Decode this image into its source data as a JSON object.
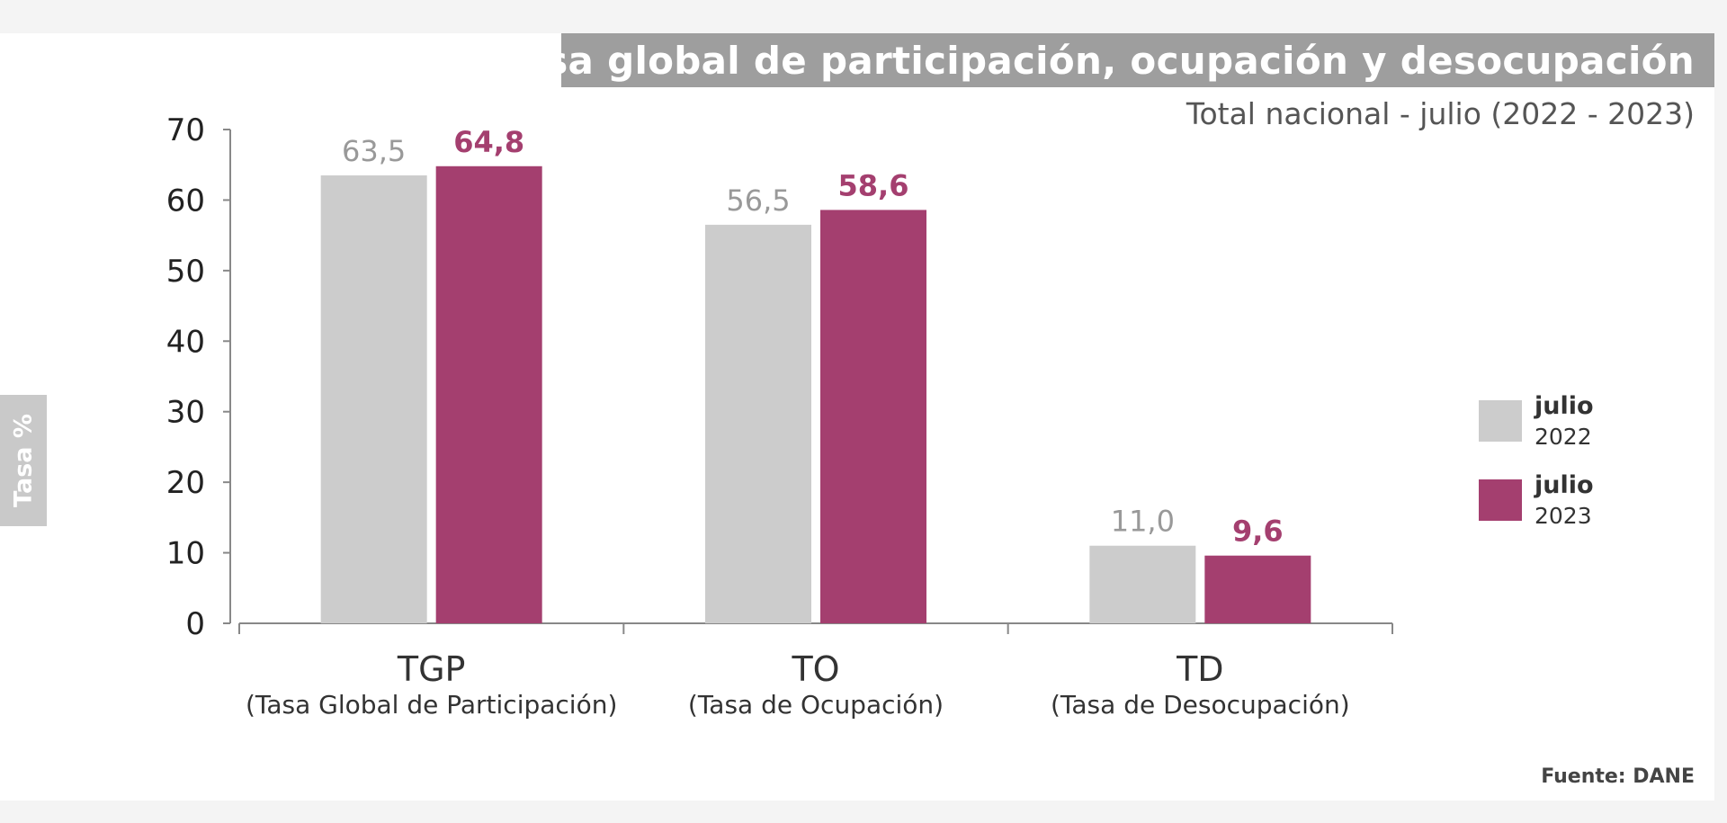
{
  "chart_data": {
    "type": "bar",
    "title": "Tasa global de participación, ocupación y desocupación",
    "subtitle": "Total nacional - julio (2022 - 2023)",
    "ylabel": "Tasa %",
    "xlabel": "",
    "ylim": [
      0,
      70
    ],
    "yticks": [
      0,
      10,
      20,
      30,
      40,
      50,
      60,
      70
    ],
    "grid": false,
    "legend_position": "right",
    "categories": [
      {
        "code": "TGP",
        "name": "(Tasa Global de Participación)"
      },
      {
        "code": "TO",
        "name": "(Tasa de Ocupación)"
      },
      {
        "code": "TD",
        "name": "(Tasa de Desocupación)"
      }
    ],
    "series": [
      {
        "name": "julio 2022",
        "legend_line1": "julio",
        "legend_line2": "2022",
        "values": [
          63.5,
          56.5,
          11.0
        ],
        "labels": [
          "63,5",
          "56,5",
          "11,0"
        ],
        "color": "#cccccc",
        "label_color": "#999999"
      },
      {
        "name": "julio 2023",
        "legend_line1": "julio",
        "legend_line2": "2023",
        "values": [
          64.8,
          58.6,
          9.6
        ],
        "labels": [
          "64,8",
          "58,6",
          "9,6"
        ],
        "color": "#a43f6f",
        "label_color": "#a43f6f"
      }
    ],
    "source": "Fuente: DANE"
  }
}
